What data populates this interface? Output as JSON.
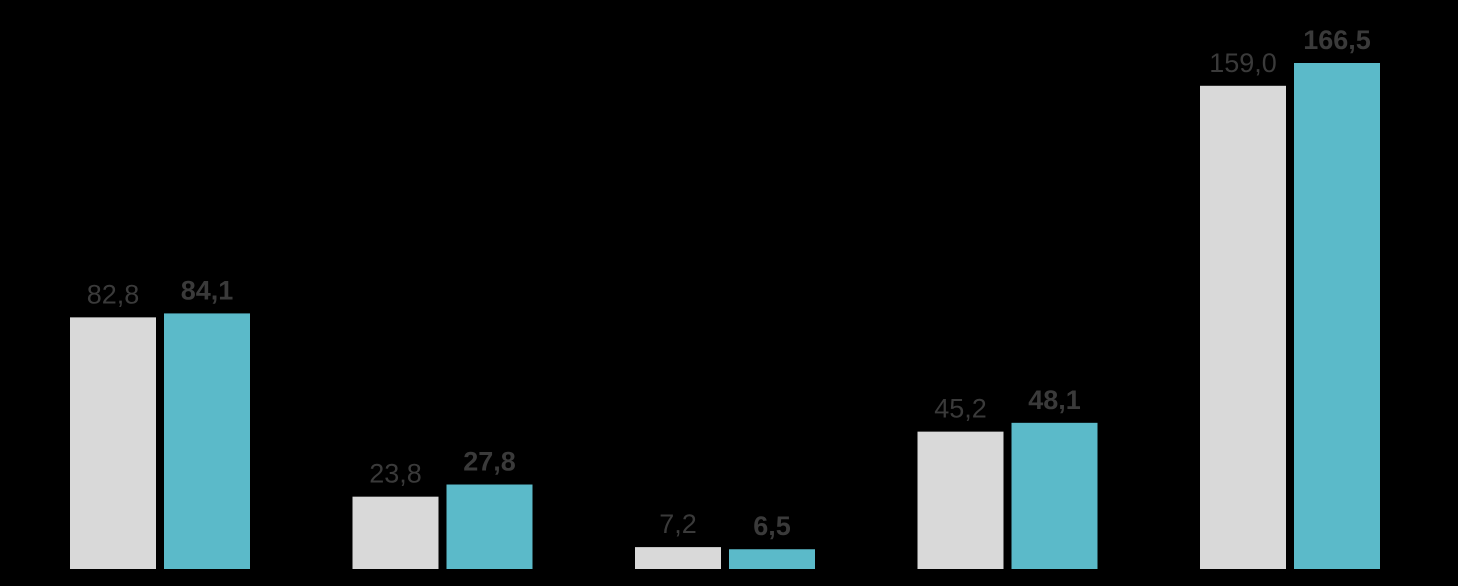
{
  "chart_data": {
    "type": "bar",
    "title": "",
    "xlabel": "",
    "ylabel": "",
    "categories": [
      "",
      "",
      "",
      "",
      ""
    ],
    "ylim": [
      0,
      166.5
    ],
    "grid": false,
    "legend": "none",
    "series": [
      {
        "values": [
          82.8,
          23.8,
          7.2,
          45.2,
          159.0
        ],
        "labels": [
          "82,8",
          "23,8",
          "7,2",
          "45,2",
          "159,0"
        ],
        "color": "#d9d9d9",
        "label_bold": false
      },
      {
        "values": [
          84.1,
          27.8,
          6.5,
          48.1,
          166.5
        ],
        "labels": [
          "84,1",
          "27,8",
          "6,5",
          "48,1",
          "166,5"
        ],
        "color": "#5bbac9",
        "label_bold": true
      }
    ]
  },
  "colors": {
    "background": "#000000",
    "label_text": "#3a3a3a"
  }
}
